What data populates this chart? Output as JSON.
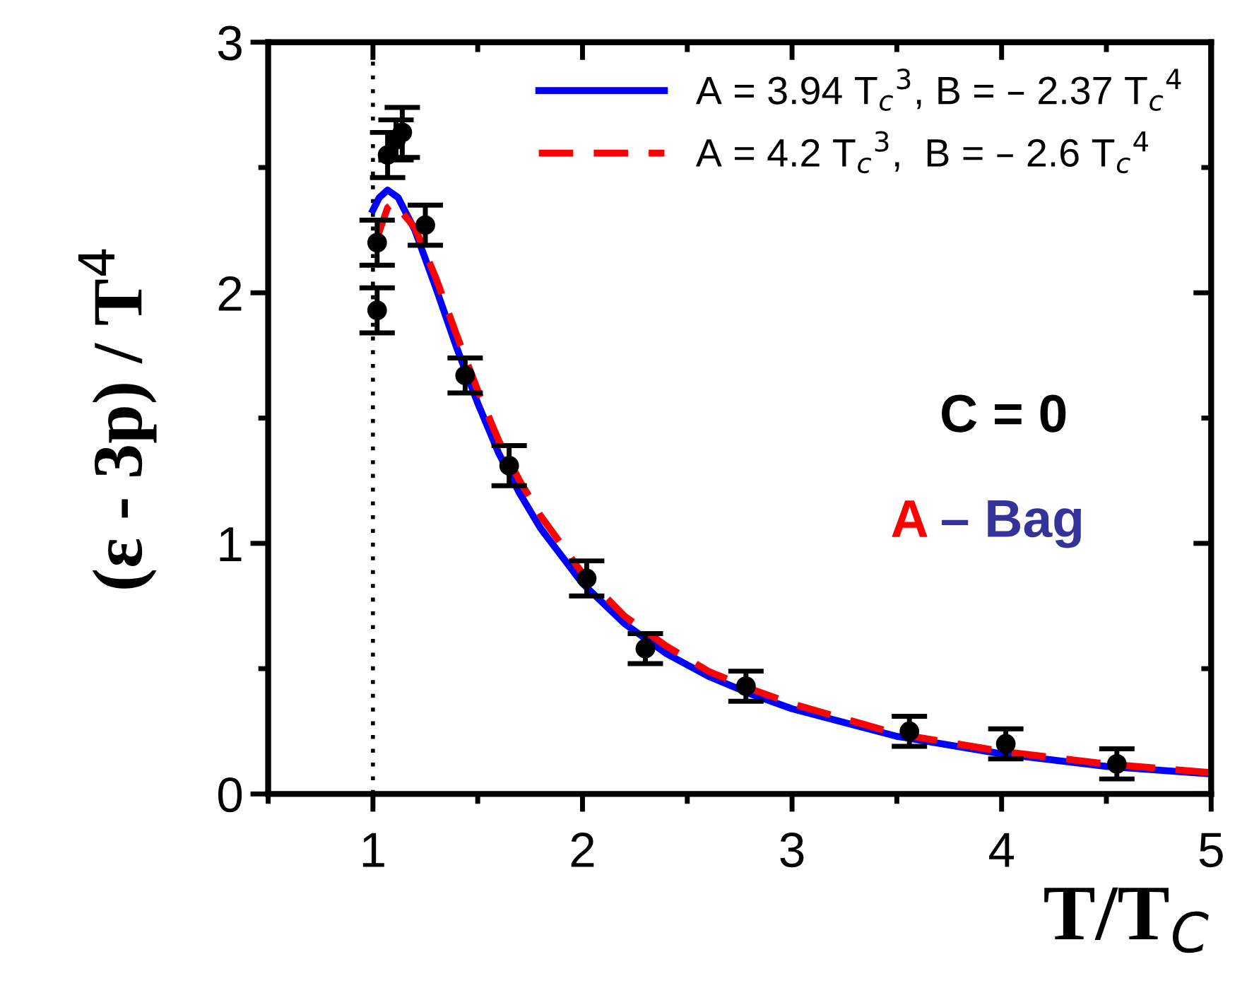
{
  "chart_data": {
    "type": "scatter",
    "xlabel": "T/T$_{C}$",
    "ylabel": "(ε - 3p) / T$^{4}$",
    "xlim": [
      0.5,
      5
    ],
    "ylim": [
      0,
      3
    ],
    "xticks": [
      1,
      2,
      3,
      4,
      5
    ],
    "yticks": [
      0,
      1,
      2,
      3
    ],
    "grid": false,
    "legend": "top right",
    "marker": "circle",
    "series": [
      {
        "color": "#000000",
        "x": [
          1.02,
          1.02,
          1.07,
          1.11,
          1.14,
          1.25,
          1.44,
          1.65,
          2.02,
          2.3,
          2.78,
          3.56,
          4.02,
          4.55
        ],
        "values": [
          1.93,
          2.2,
          2.55,
          2.61,
          2.64,
          2.27,
          1.67,
          1.31,
          0.86,
          0.58,
          0.43,
          0.25,
          0.2,
          0.12
        ],
        "errors": [
          0.09,
          0.09,
          0.09,
          0.08,
          0.1,
          0.08,
          0.07,
          0.08,
          0.07,
          0.06,
          0.06,
          0.06,
          0.06,
          0.06
        ]
      },
      {
        "type": "line",
        "name": "A = 3.94 T$_{c}$$^{3}$, B = – 2.37 T$_{c}$$^{4}$",
        "color": "#0000ff",
        "line_style": "solid",
        "marker": "none",
        "x": [
          1.0,
          1.03,
          1.07,
          1.12,
          1.2,
          1.3,
          1.4,
          1.5,
          1.6,
          1.7,
          1.8,
          2.0,
          2.2,
          2.4,
          2.6,
          2.8,
          3.0,
          3.5,
          4.0,
          4.5,
          5.0
        ],
        "values": [
          2.33,
          2.38,
          2.41,
          2.38,
          2.25,
          2.02,
          1.78,
          1.56,
          1.36,
          1.2,
          1.06,
          0.84,
          0.68,
          0.56,
          0.47,
          0.4,
          0.34,
          0.23,
          0.16,
          0.11,
          0.08
        ]
      },
      {
        "type": "line",
        "name": "A = 4.2 T$_{c}$$^{3}$,  B = – 2.6 T$_{c}$$^{4}$",
        "color": "#ff0000",
        "line_style": "dashed",
        "marker": "none",
        "x": [
          1.02,
          1.07,
          1.1,
          1.2,
          1.3,
          1.4,
          1.5,
          1.6,
          1.7,
          1.8,
          2.0,
          2.2,
          2.4,
          2.6,
          2.8,
          3.0,
          3.5,
          4.0,
          4.5,
          5.0
        ],
        "values": [
          2.22,
          2.34,
          2.36,
          2.26,
          2.06,
          1.83,
          1.61,
          1.41,
          1.25,
          1.11,
          0.88,
          0.71,
          0.59,
          0.49,
          0.42,
          0.36,
          0.24,
          0.17,
          0.12,
          0.085
        ]
      }
    ],
    "ref_lines": [
      {
        "axis": "x",
        "value": 1,
        "color": "#000000",
        "line_style": "dotted"
      }
    ],
    "annotations": [
      "C = 0",
      "A",
      "– Bag"
    ]
  }
}
